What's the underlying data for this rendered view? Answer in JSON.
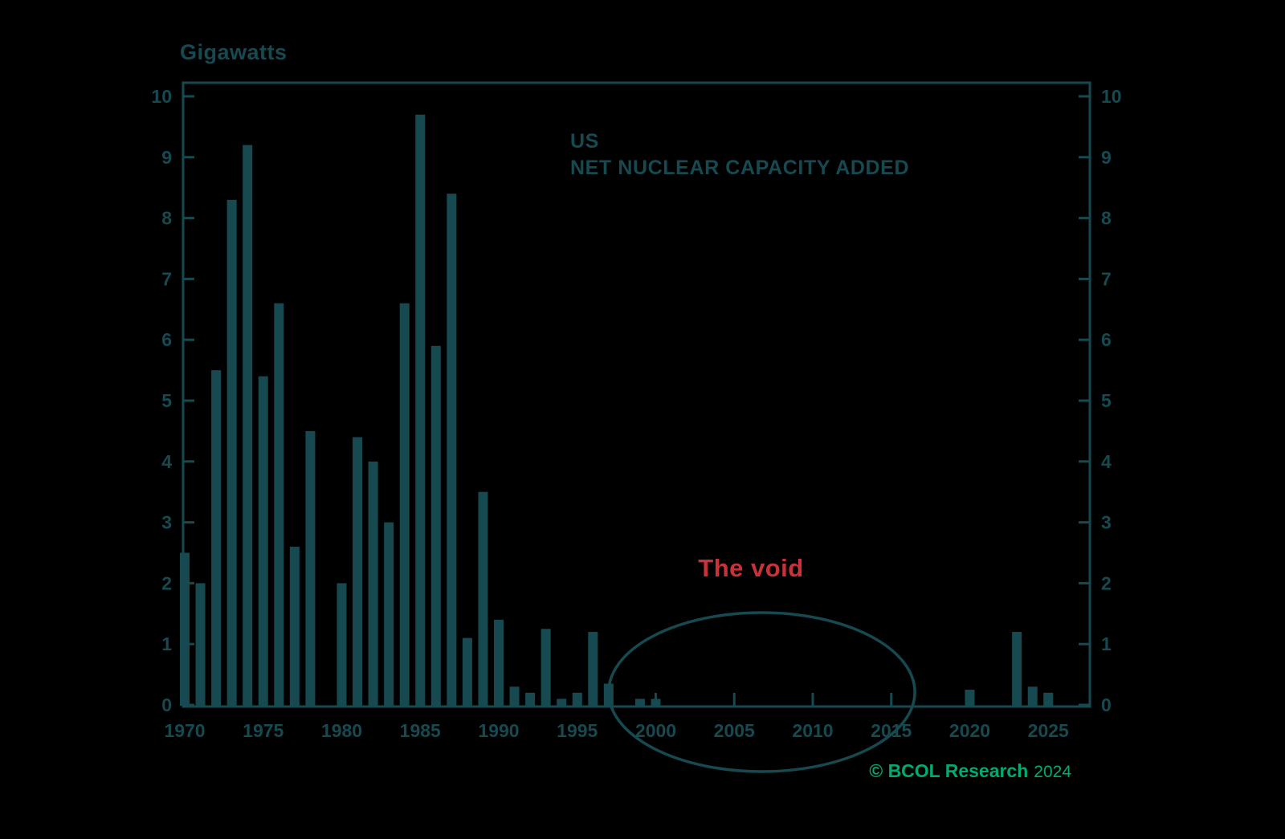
{
  "colors": {
    "background": "#000000",
    "ink": "#164a50",
    "void_red": "#c83238",
    "brand_green": "#00ab6f"
  },
  "chart_data": {
    "type": "bar",
    "unit_label": "Gigawatts",
    "title": "US",
    "subtitle": "NET NUCLEAR CAPACITY ADDED",
    "annotation": {
      "label": "The void",
      "circle_years": [
        1997,
        2016.5
      ]
    },
    "source": "© BCOL Research",
    "source_year": "2024",
    "ylim": [
      0,
      10
    ],
    "y_ticks": [
      0,
      1,
      2,
      3,
      4,
      5,
      6,
      7,
      8,
      9,
      10
    ],
    "x_axis_labels": [
      "1970",
      "1975",
      "1980",
      "1985",
      "1990",
      "1995",
      "2000",
      "2005",
      "2010",
      "2015",
      "2020",
      "2025"
    ],
    "series_name": "Net nuclear capacity added (GW)",
    "legend": "none",
    "grid": false,
    "years": [
      1970,
      1971,
      1972,
      1973,
      1974,
      1975,
      1976,
      1977,
      1978,
      1979,
      1980,
      1981,
      1982,
      1983,
      1984,
      1985,
      1986,
      1987,
      1988,
      1989,
      1990,
      1991,
      1992,
      1993,
      1994,
      1995,
      1996,
      1997,
      1998,
      1999,
      2000,
      2001,
      2002,
      2003,
      2004,
      2005,
      2006,
      2007,
      2008,
      2009,
      2010,
      2011,
      2012,
      2013,
      2014,
      2015,
      2016,
      2017,
      2018,
      2019,
      2020,
      2021,
      2022,
      2023,
      2024,
      2025
    ],
    "values": [
      2.5,
      2.0,
      5.5,
      8.3,
      9.2,
      5.4,
      6.6,
      2.6,
      4.5,
      0,
      2.0,
      4.4,
      4.0,
      3.0,
      6.6,
      9.7,
      5.9,
      8.4,
      1.1,
      3.5,
      1.4,
      0.3,
      0.2,
      1.25,
      0.1,
      0.2,
      1.2,
      0.35,
      0,
      0.1,
      0.1,
      0,
      0,
      0,
      0,
      0,
      0,
      0,
      0,
      0,
      0,
      0,
      0,
      0,
      0,
      0,
      0,
      0,
      0,
      0,
      0.25,
      0,
      0,
      1.2,
      0.3,
      0.2
    ]
  }
}
